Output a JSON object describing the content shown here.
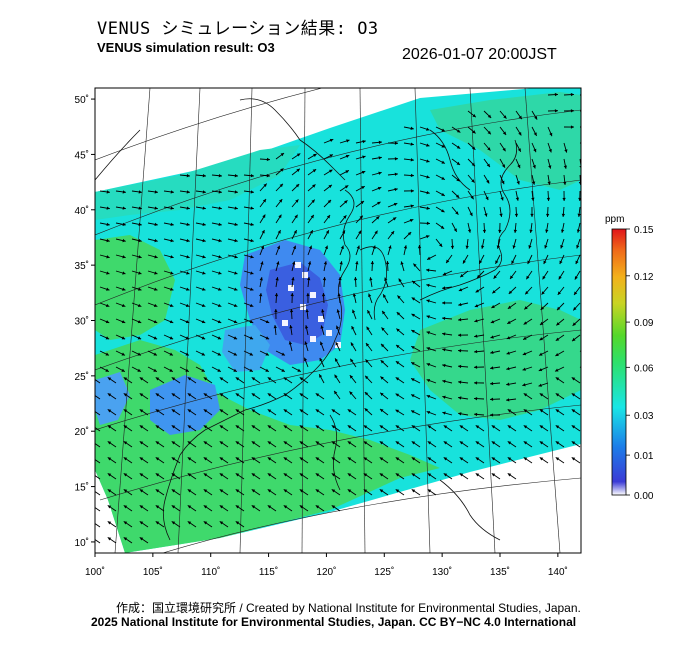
{
  "header": {
    "title_jp": "VENUS シミュレーション結果: O3",
    "title_en": "VENUS simulation result: O3",
    "timestamp": "2026-01-07 20:00JST"
  },
  "map": {
    "lon_ticks": [
      "100˚",
      "105˚",
      "110˚",
      "115˚",
      "120˚",
      "125˚",
      "130˚",
      "135˚",
      "140˚"
    ],
    "lat_ticks": [
      "50˚",
      "45˚",
      "40˚",
      "35˚",
      "30˚",
      "25˚",
      "20˚",
      "15˚",
      "10˚"
    ],
    "lon_range": [
      100,
      142
    ],
    "lat_range": [
      9,
      51
    ]
  },
  "colorbar": {
    "unit": "ppm",
    "labels": [
      "0.15",
      "0.12",
      "0.09",
      "0.06",
      "0.03",
      "0.01",
      "0.00"
    ],
    "colors": [
      "#e0151b",
      "#f48f1a",
      "#d4d321",
      "#40d634",
      "#19e6e6",
      "#1a5fe0",
      "#ffffff"
    ]
  },
  "footer": {
    "credit": "作成：国立環境研究所 / Created by National Institute for Environmental Studies, Japan.",
    "copyright": "2025 National Institute for Environmental Studies, Japan. CC BY−NC 4.0 International"
  }
}
